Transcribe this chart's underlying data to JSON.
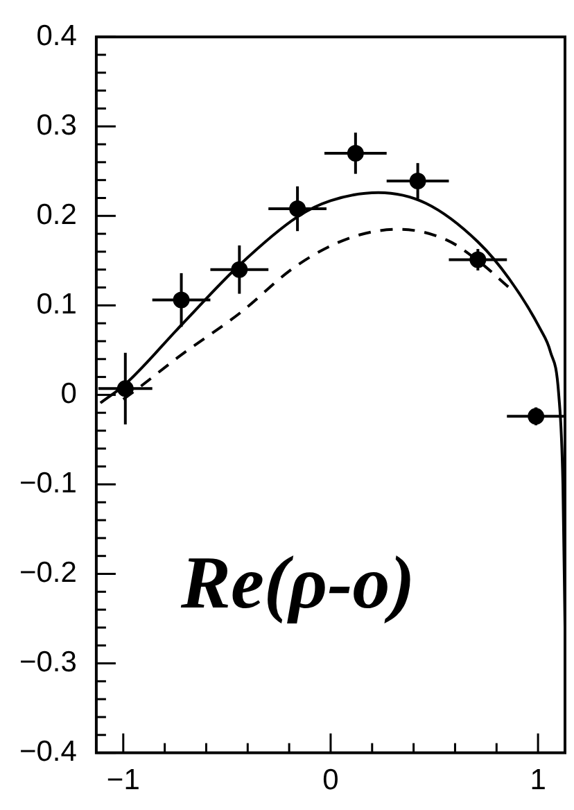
{
  "chart_data": {
    "type": "scatter",
    "xlim": [
      -1.13,
      1.13
    ],
    "ylim": [
      -0.4,
      0.4
    ],
    "xticks": [
      {
        "value": -1,
        "label": "−1"
      },
      {
        "value": -0.8,
        "label": null
      },
      {
        "value": -0.6,
        "label": null
      },
      {
        "value": -0.4,
        "label": null
      },
      {
        "value": -0.2,
        "label": null
      },
      0,
      {
        "value": 0.2,
        "label": null
      },
      {
        "value": 0.4,
        "label": null
      },
      {
        "value": 0.6,
        "label": null
      },
      {
        "value": 0.8,
        "label": null
      },
      1
    ],
    "yticks": [
      {
        "value": -0.4,
        "label": "−0.4"
      },
      {
        "value": -0.3,
        "label": "−0.3"
      },
      {
        "value": -0.2,
        "label": "−0.2"
      },
      {
        "value": -0.1,
        "label": "−0.1"
      },
      0,
      0.1,
      0.2,
      0.3,
      0.4
    ],
    "grid": false,
    "legend": false,
    "series": [
      {
        "type": "scatter",
        "color": "#000000",
        "marker": "circle",
        "x": [
          -0.99,
          -0.72,
          -0.44,
          -0.16,
          0.12,
          0.42,
          0.71,
          0.99
        ],
        "values": [
          0.007,
          0.106,
          0.14,
          0.208,
          0.27,
          0.239,
          0.151,
          -0.024
        ],
        "errors": [
          0.04,
          0.03,
          0.027,
          0.025,
          0.023,
          0.02,
          0.012,
          0.01
        ],
        "xerrors": [
          0.13,
          0.14,
          0.14,
          0.14,
          0.15,
          0.15,
          0.14,
          0.14
        ]
      },
      {
        "type": "line",
        "color": "#000000",
        "line_style": "solid",
        "marker": "none",
        "x": [
          -1.11,
          -0.99,
          -0.72,
          -0.44,
          -0.16,
          0.0,
          0.23,
          0.46,
          0.71,
          0.86,
          1.01,
          1.06,
          1.1,
          1.12,
          1.13
        ],
        "values": [
          -0.009,
          0.012,
          0.078,
          0.145,
          0.199,
          0.217,
          0.226,
          0.214,
          0.171,
          0.13,
          0.074,
          0.048,
          0.0,
          -0.1,
          -0.26
        ]
      },
      {
        "type": "line",
        "color": "#000000",
        "line_style": "dashed",
        "marker": "none",
        "x": [
          -1.0,
          -0.93,
          -0.73,
          -0.44,
          -0.16,
          0.1,
          0.33,
          0.56,
          0.71,
          0.86
        ],
        "values": [
          -0.005,
          0.007,
          0.043,
          0.091,
          0.145,
          0.176,
          0.185,
          0.173,
          0.15,
          0.12
        ]
      }
    ],
    "annotations": [
      "Re(ρ-o)"
    ]
  }
}
